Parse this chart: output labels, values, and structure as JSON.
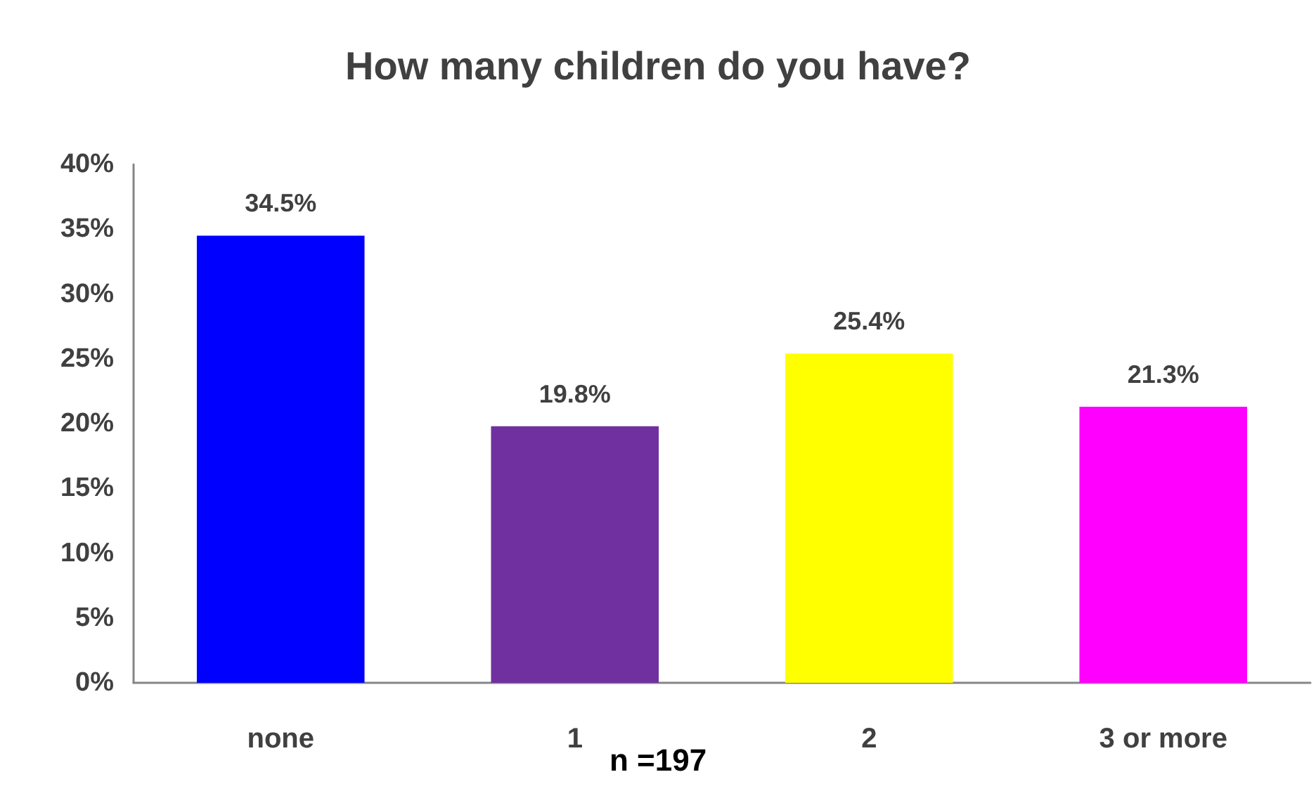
{
  "chart_data": {
    "type": "bar",
    "title": "How many children do you have?",
    "categories": [
      "none",
      "1",
      "2",
      "3 or more"
    ],
    "values": [
      34.5,
      19.8,
      25.4,
      21.3
    ],
    "colors": [
      "#0000ff",
      "#7030a0",
      "#ffff00",
      "#ff00ff"
    ],
    "value_labels": [
      "34.5%",
      "19.8%",
      "25.4%",
      "21.3%"
    ],
    "ylim": [
      0,
      40
    ],
    "yticks": [
      {
        "value": 0,
        "label": "0%"
      },
      {
        "value": 5,
        "label": "5%"
      },
      {
        "value": 10,
        "label": "10%"
      },
      {
        "value": 15,
        "label": "15%"
      },
      {
        "value": 20,
        "label": "20%"
      },
      {
        "value": 25,
        "label": "25%"
      },
      {
        "value": 30,
        "label": "30%"
      },
      {
        "value": 35,
        "label": "35%"
      },
      {
        "value": 40,
        "label": "40%"
      }
    ],
    "grid": false,
    "annotations": [
      "n =197"
    ]
  }
}
